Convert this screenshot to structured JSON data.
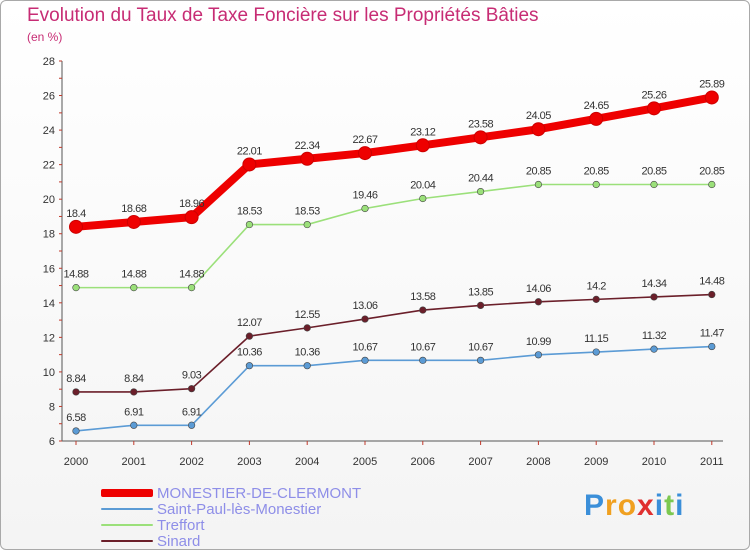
{
  "header": {
    "title": "Evolution du Taux de Taxe Foncière sur les Propriétés Bâties",
    "unit": "(en %)"
  },
  "brand": {
    "letters": [
      "P",
      "r",
      "o",
      "x",
      "i",
      "t",
      "i"
    ],
    "colors": [
      "#3b8fd9",
      "#f0a020",
      "#f0a020",
      "#e03030",
      "#3b8fd9",
      "#7cc850",
      "#3b8fd9"
    ]
  },
  "chart_data": {
    "type": "line",
    "title": "Evolution du Taux de Taxe Foncière sur les Propriétés Bâties",
    "ylabel": "(en %)",
    "xlabel": "",
    "ylim": [
      6,
      28
    ],
    "yticks": [
      "6",
      "8",
      "10",
      "12",
      "14",
      "16",
      "18",
      "20",
      "22",
      "24",
      "26",
      "28"
    ],
    "categories": [
      "2000",
      "2001",
      "2002",
      "2003",
      "2004",
      "2005",
      "2006",
      "2007",
      "2008",
      "2009",
      "2010",
      "2011"
    ],
    "grid": false,
    "legend_position": "bottom-left",
    "series": [
      {
        "name": "Sinard",
        "color": "#6b1f2a",
        "values": [
          8.84,
          8.84,
          9.03,
          12.07,
          12.55,
          13.06,
          13.58,
          13.85,
          14.06,
          14.2,
          14.34,
          14.48
        ],
        "labels": [
          "8.84",
          "8.84",
          "9.03",
          "12.07",
          "12.55",
          "13.06",
          "13.58",
          "13.85",
          "14.06",
          "14.2",
          "14.34",
          "14.48"
        ]
      },
      {
        "name": "Saint-Paul-lès-Monestier",
        "color": "#5b9bd5",
        "values": [
          6.58,
          6.91,
          6.91,
          10.36,
          10.36,
          10.67,
          10.67,
          10.67,
          10.99,
          11.15,
          11.32,
          11.47
        ],
        "labels": [
          "6.58",
          "6.91",
          "6.91",
          "10.36",
          "10.36",
          "10.67",
          "10.67",
          "10.67",
          "10.99",
          "11.15",
          "11.32",
          "11.47"
        ]
      },
      {
        "name": "Treffort",
        "color": "#9be07a",
        "values": [
          14.88,
          14.88,
          14.88,
          18.53,
          18.53,
          19.46,
          20.04,
          20.44,
          20.85,
          20.85,
          20.85,
          20.85
        ],
        "labels": [
          "14.88",
          "14.88",
          "14.88",
          "18.53",
          "18.53",
          "19.46",
          "20.04",
          "20.44",
          "20.85",
          "20.85",
          "20.85",
          "20.85"
        ]
      },
      {
        "name": "MONESTIER-DE-CLERMONT",
        "color": "#ee0000",
        "values": [
          18.4,
          18.68,
          18.96,
          22.01,
          22.34,
          22.67,
          23.12,
          23.58,
          24.05,
          24.65,
          25.26,
          25.89
        ],
        "labels": [
          "18.4",
          "18.68",
          "18.96",
          "22.01",
          "22.34",
          "22.67",
          "23.12",
          "23.58",
          "24.05",
          "24.65",
          "25.26",
          "25.89"
        ]
      }
    ],
    "legend": [
      {
        "name": "MONESTIER-DE-CLERMONT",
        "color": "#ee0000",
        "weight": "thick"
      },
      {
        "name": "Saint-Paul-lès-Monestier",
        "color": "#5b9bd5",
        "weight": "thin"
      },
      {
        "name": "Treffort",
        "color": "#9be07a",
        "weight": "thin"
      },
      {
        "name": "Sinard",
        "color": "#6b1f2a",
        "weight": "thin"
      }
    ]
  }
}
